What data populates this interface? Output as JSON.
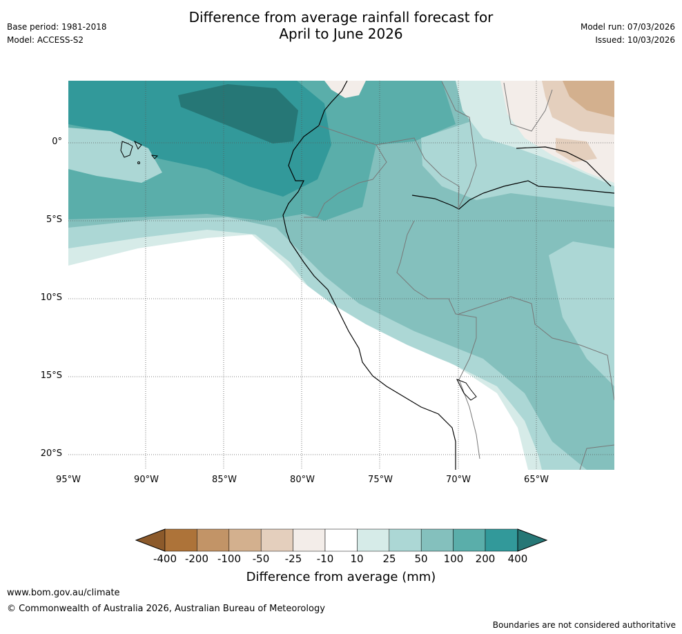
{
  "header": {
    "title_line1": "Difference from average rainfall forecast for",
    "title_line2": "April to June 2026",
    "base_period": "Base period: 1981-2018",
    "model": "Model: ACCESS-S2",
    "model_run": "Model run: 07/03/2026",
    "issued": "Issued: 10/03/2026"
  },
  "map": {
    "lat_labels": [
      "0°",
      "5°S",
      "10°S",
      "15°S",
      "20°S"
    ],
    "lon_labels": [
      "95°W",
      "90°W",
      "85°W",
      "80°W",
      "75°W",
      "70°W",
      "65°W"
    ]
  },
  "colorbar": {
    "title": "Difference from average (mm)",
    "tick_labels": [
      "-400",
      "-200",
      "-100",
      "-50",
      "-25",
      "-10",
      "10",
      "25",
      "50",
      "100",
      "200",
      "400"
    ],
    "colors": {
      "below_min": "#8c5a2b",
      "bin_1": "#ad7339",
      "bin_2": "#c29467",
      "bin_3": "#d3b08e",
      "bin_4": "#e4cfbd",
      "bin_5": "#f3ede9",
      "bin_6": "#ffffff",
      "bin_7": "#d6ebe8",
      "bin_8": "#acd7d5",
      "bin_9": "#84c0bd",
      "bin_10": "#5aaeaa",
      "bin_11": "#32999a",
      "above_max": "#267776"
    }
  },
  "footer": {
    "website": "www.bom.gov.au/climate",
    "copyright": "© Commonwealth of Australia 2026, Australian Bureau of Meteorology",
    "disclaimer": "Boundaries are not considered authoritative"
  }
}
